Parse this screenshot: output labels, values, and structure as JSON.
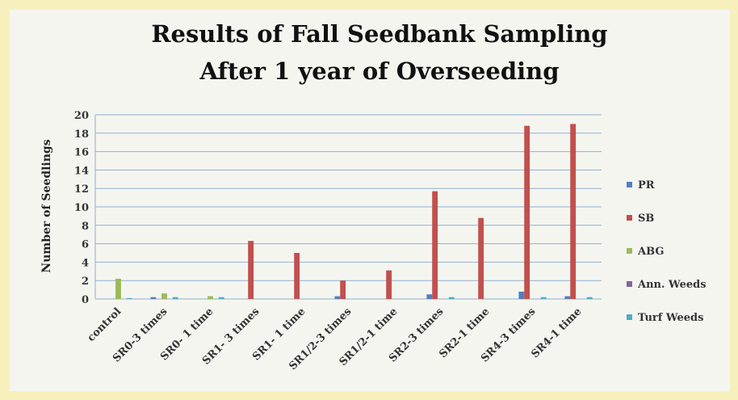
{
  "chart_data": {
    "type": "bar",
    "title": [
      "Results of Fall Seedbank Sampling",
      "After 1 year of Overseeding"
    ],
    "y_label": "Number of Seedlings",
    "categories": [
      "control",
      "SR0-3 times",
      "SR0- 1 time",
      "SR1- 3 times",
      "SR1- 1 time",
      "SR1/2-3 times",
      "SR1/2-1 time",
      "SR2-3 times",
      "SR2-1 time",
      "SR4-3 times",
      "SR4-1 time"
    ],
    "series": [
      {
        "name": "PR",
        "color": "#4f81bd",
        "values": [
          0,
          0.2,
          0,
          0,
          0,
          0.3,
          0,
          0.5,
          0,
          0.8,
          0.3
        ]
      },
      {
        "name": "SB",
        "color": "#c0504d",
        "values": [
          0,
          0,
          0,
          6.3,
          5,
          2,
          3.1,
          11.7,
          8.8,
          18.8,
          19
        ]
      },
      {
        "name": "ABG",
        "color": "#9bbb59",
        "values": [
          2.2,
          0.6,
          0.3,
          0,
          0,
          0,
          0,
          0,
          0,
          0,
          0
        ]
      },
      {
        "name": "Ann. Weeds",
        "color": "#8064a2",
        "values": [
          0,
          0,
          0,
          0,
          0,
          0,
          0,
          0,
          0,
          0,
          0
        ]
      },
      {
        "name": "Turf Weeds",
        "color": "#4bacc6",
        "values": [
          0.1,
          0.2,
          0.2,
          0,
          0,
          0,
          0,
          0.2,
          0,
          0.2,
          0.2
        ]
      }
    ],
    "ylim": [
      0,
      20
    ],
    "yticks": [
      0,
      2,
      4,
      6,
      8,
      10,
      12,
      14,
      16,
      18,
      20
    ],
    "grid": true,
    "legend": "right"
  }
}
